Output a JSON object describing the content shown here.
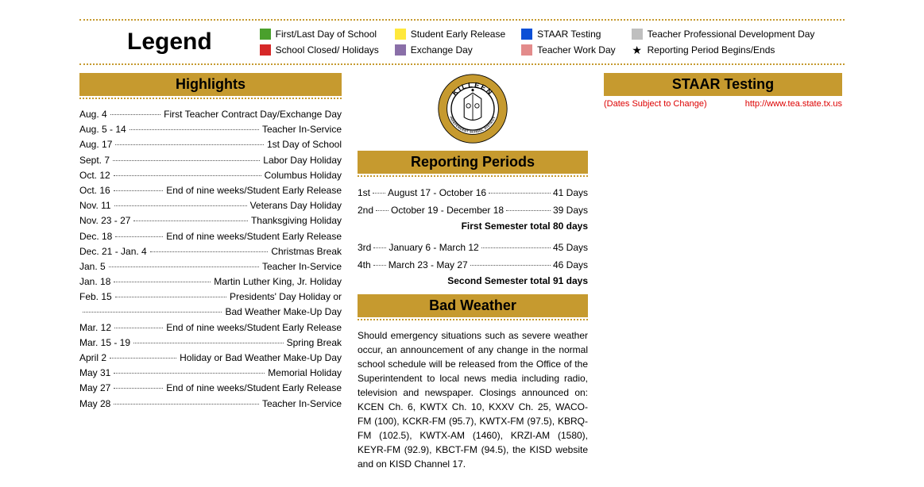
{
  "legend": {
    "title": "Legend",
    "items": [
      {
        "color": "#4aa02c",
        "label": "First/Last Day of School"
      },
      {
        "color": "#d62828",
        "label": "School Closed/ Holidays"
      },
      {
        "color": "#ffe83b",
        "label": "Student Early Release"
      },
      {
        "color": "#8a6fa8",
        "label": "Exchange Day"
      },
      {
        "color": "#0b4fd6",
        "label": "STAAR  Testing"
      },
      {
        "color": "#e38b8b",
        "label": "Teacher Work Day"
      },
      {
        "color": "#bfbfbf",
        "label": "Teacher Professional Development Day"
      },
      {
        "star": true,
        "label": "Reporting Period Begins/Ends"
      }
    ]
  },
  "highlights": {
    "header": "Highlights",
    "rows": [
      {
        "date": "Aug. 4",
        "label": "First Teacher Contract Day/Exchange Day"
      },
      {
        "date": "Aug. 5 - 14",
        "label": "Teacher In-Service"
      },
      {
        "date": "Aug. 17",
        "label": "1st Day of School"
      },
      {
        "date": "Sept. 7",
        "label": "Labor Day Holiday"
      },
      {
        "date": "Oct. 12",
        "label": "Columbus Holiday"
      },
      {
        "date": "Oct. 16",
        "label": "End of nine weeks/Student Early Release"
      },
      {
        "date": "Nov. 11",
        "label": "Veterans Day Holiday"
      },
      {
        "date": "Nov. 23 - 27",
        "label": "Thanksgiving Holiday"
      },
      {
        "date": "Dec. 18",
        "label": "End of nine weeks/Student Early Release"
      },
      {
        "date": "Dec. 21 - Jan. 4",
        "label": "Christmas Break"
      },
      {
        "date": "Jan. 5",
        "label": "Teacher In-Service"
      },
      {
        "date": "Jan. 18",
        "label": "Martin Luther King, Jr. Holiday"
      },
      {
        "date": "Feb. 15",
        "label": "Presidents' Day Holiday or"
      },
      {
        "date": "",
        "label": "Bad Weather Make-Up Day"
      },
      {
        "date": "Mar. 12",
        "label": "End of nine weeks/Student Early Release"
      },
      {
        "date": "Mar. 15 - 19",
        "label": "Spring Break"
      },
      {
        "date": "April 2",
        "label": "Holiday or Bad Weather Make-Up Day"
      },
      {
        "date": "May 31",
        "label": "Memorial Holiday"
      },
      {
        "date": "May 27",
        "label": "End of nine weeks/Student Early Release"
      },
      {
        "date": "May 28",
        "label": "Teacher In-Service"
      }
    ]
  },
  "reporting": {
    "header": "Reporting Periods",
    "periods": [
      {
        "ord": "1st",
        "range": "August 17 - October 16",
        "days": "41 Days"
      },
      {
        "ord": "2nd",
        "range": "October 19 - December 18",
        "days": "39 Days"
      }
    ],
    "total1": "First Semester total 80 days",
    "periods2": [
      {
        "ord": "3rd",
        "range": "January 6 - March 12",
        "days": "45 Days"
      },
      {
        "ord": "4th",
        "range": "March 23 - May 27",
        "days": "46 Days"
      }
    ],
    "total2": "Second Semester total 91 days"
  },
  "badweather": {
    "header": "Bad Weather",
    "text": "Should emergency situations such as severe weather occur, an announcement of any change in the normal school schedule will be released from the Office of the Superintendent to local news media including radio, television and newspaper. Closings announced on: KCEN Ch. 6, KWTX Ch. 10, KXXV Ch. 25, WACO- FM (100), KCKR-FM (95.7), KWTX-FM (97.5), KBRQ-FM (102.5), KWTX-AM (1460), KRZI-AM (1580), KEYR-FM (92.9), KBCT-FM (94.5), the KISD website and on KISD Channel 17."
  },
  "staar": {
    "header": "STAAR Testing",
    "subject": "(Dates Subject to Change)",
    "url": "http://www.tea.state.tx.us"
  },
  "seal": {
    "outer_text_top": "KILLEEN",
    "outer_text_bottom": "INDEPENDENT SCHOOL DISTRICT",
    "ring_color": "#c69a2f",
    "inner_bg": "#ffffff",
    "text_color": "#000000"
  }
}
